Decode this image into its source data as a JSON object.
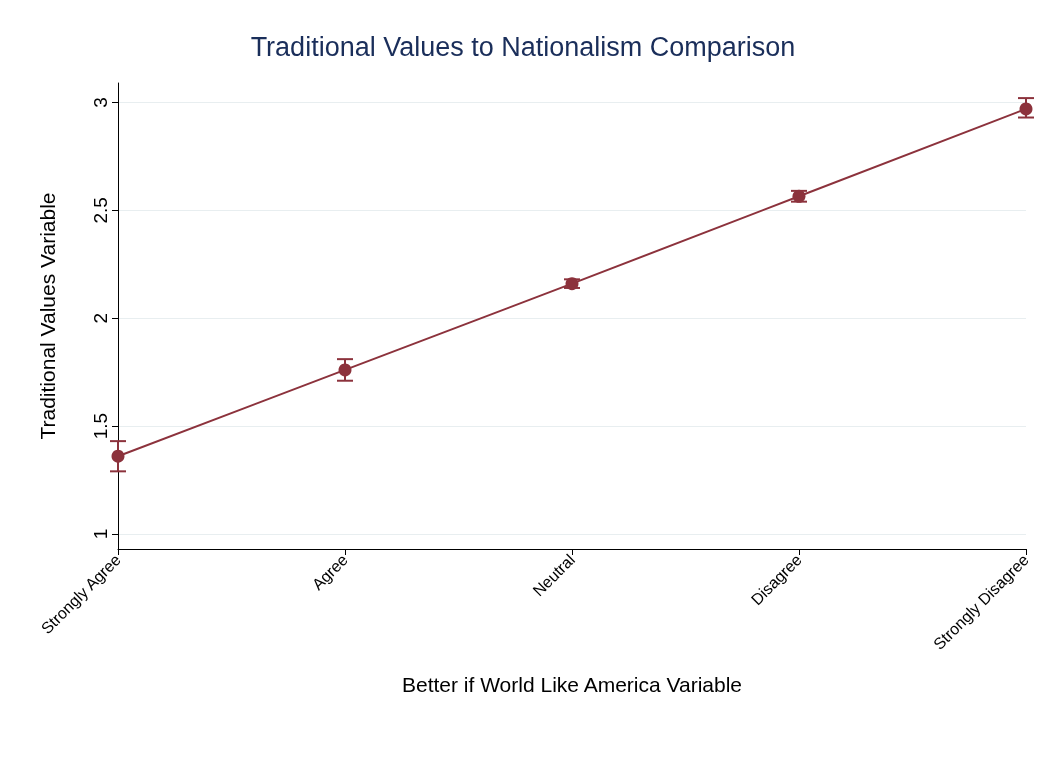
{
  "chart_data": {
    "type": "line",
    "title": "Traditional Values to Nationalism Comparison",
    "xlabel": "Better if World Like America Variable",
    "ylabel": "Traditional Values Variable",
    "categories": [
      "Strongly Agree",
      "Agree",
      "Neutral",
      "Disagree",
      "Strongly Disagree"
    ],
    "series": [
      {
        "color": "#8c323c",
        "values": [
          1.36,
          1.76,
          2.16,
          2.565,
          2.97
        ],
        "errors": [
          [
            1.29,
            1.43
          ],
          [
            1.71,
            1.81
          ],
          [
            2.14,
            2.18
          ],
          [
            2.54,
            2.59
          ],
          [
            2.93,
            3.02
          ]
        ]
      }
    ],
    "ylim": [
      0.93,
      3.09
    ],
    "yticks": [
      1,
      1.5,
      2,
      2.5,
      3
    ],
    "grid": "y",
    "marker": "circle",
    "line_style": "solid"
  }
}
